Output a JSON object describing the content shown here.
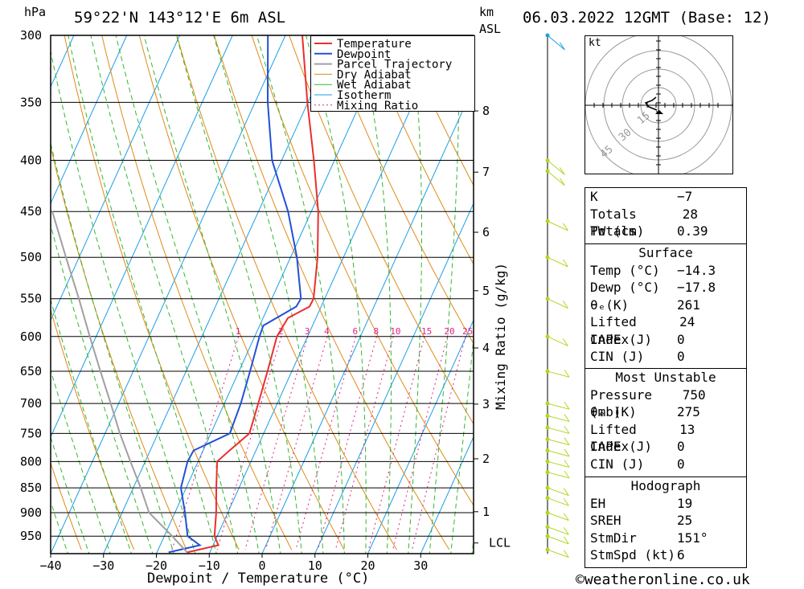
{
  "header": {
    "location": "59°22'N 143°12'E 6m ASL",
    "datetime": "06.03.2022 12GMT (Base: 12)",
    "hpa_label": "hPa",
    "km_label": "km",
    "asl_label": "ASL"
  },
  "legend": [
    "Temperature",
    "Dewpoint",
    "Parcel Trajectory",
    "Dry Adiabat",
    "Wet Adiabat",
    "Isotherm",
    "Mixing Ratio"
  ],
  "colors": {
    "temperature": "#e8302e",
    "dewpoint": "#2250d8",
    "parcel": "#a0a0a0",
    "dry_adiabat": "#e08a18",
    "wet_adiabat": "#30b830",
    "isotherm": "#1a9ee6",
    "mixing_ratio": "#e0208a",
    "wind_barbs": "#b0d820"
  },
  "chart_data": {
    "type": "line",
    "title": "59°22'N 143°12'E 6m ASL",
    "xlabel": "Dewpoint / Temperature (°C)",
    "ylabel": "hPa",
    "ylabel_right": "Mixing Ratio (g/kg)",
    "x_ticks": [
      -40,
      -30,
      -20,
      -10,
      0,
      10,
      20,
      30
    ],
    "x_tick_labels": [
      "−40",
      "−30",
      "−20",
      "−10",
      "0",
      "10",
      "20",
      "30"
    ],
    "pressure_levels": [
      300,
      350,
      400,
      450,
      500,
      550,
      600,
      650,
      700,
      750,
      800,
      850,
      900,
      950
    ],
    "km_ticks": [
      1,
      2,
      3,
      4,
      5,
      6,
      7,
      8
    ],
    "lcl_label": "LCL",
    "mixing_ratio_labels": [
      "1",
      "2",
      "3",
      "4",
      "6",
      "8",
      "10",
      "15",
      "20",
      "25"
    ],
    "series": [
      {
        "name": "Temperature",
        "points": [
          [
            986,
            -14.3
          ],
          [
            970,
            -9
          ],
          [
            950,
            -10.5
          ],
          [
            900,
            -12.2
          ],
          [
            850,
            -14.3
          ],
          [
            800,
            -16.4
          ],
          [
            780,
            -15
          ],
          [
            750,
            -12.7
          ],
          [
            700,
            -13.6
          ],
          [
            650,
            -14.6
          ],
          [
            600,
            -15.8
          ],
          [
            575,
            -15.3
          ],
          [
            560,
            -12.2
          ],
          [
            550,
            -12.1
          ],
          [
            500,
            -14.9
          ],
          [
            450,
            -18.7
          ],
          [
            400,
            -23.9
          ],
          [
            350,
            -30.1
          ],
          [
            300,
            -36.8
          ]
        ]
      },
      {
        "name": "Dewpoint",
        "points": [
          [
            986,
            -17.8
          ],
          [
            970,
            -12.5
          ],
          [
            950,
            -15.6
          ],
          [
            900,
            -18.1
          ],
          [
            850,
            -21.0
          ],
          [
            800,
            -22.0
          ],
          [
            780,
            -21.8
          ],
          [
            750,
            -16.4
          ],
          [
            700,
            -16.9
          ],
          [
            650,
            -17.9
          ],
          [
            600,
            -19.1
          ],
          [
            585,
            -19.3
          ],
          [
            560,
            -14.7
          ],
          [
            550,
            -14.5
          ],
          [
            500,
            -18.8
          ],
          [
            450,
            -24.4
          ],
          [
            400,
            -31.8
          ],
          [
            350,
            -37.6
          ],
          [
            300,
            -43.3
          ]
        ]
      },
      {
        "name": "Parcel Trajectory",
        "points": [
          [
            986,
            -14.3
          ],
          [
            950,
            -18.5
          ],
          [
            900,
            -24.9
          ],
          [
            850,
            -28.6
          ],
          [
            800,
            -32.8
          ],
          [
            750,
            -37.2
          ],
          [
            700,
            -41.5
          ],
          [
            650,
            -46.2
          ],
          [
            600,
            -51.2
          ],
          [
            550,
            -56.5
          ],
          [
            500,
            -62.5
          ],
          [
            450,
            -69.0
          ]
        ]
      }
    ],
    "wind_barb_levels": [
      980,
      950,
      930,
      900,
      870,
      850,
      820,
      800,
      780,
      760,
      740,
      720,
      700,
      650,
      600,
      550,
      500,
      460,
      410,
      400,
      300
    ]
  },
  "hodograph": {
    "unit_label": "kt",
    "ring_labels": [
      "15",
      "30",
      "45"
    ]
  },
  "stats": {
    "k": {
      "label": "K",
      "value": "−7"
    },
    "tt": {
      "label": "Totals Totals",
      "value": "28"
    },
    "pw": {
      "label": "PW (cm)",
      "value": "0.39"
    },
    "surface": {
      "title": "Surface",
      "temp": {
        "label": "Temp (°C)",
        "value": "−14.3"
      },
      "dewp": {
        "label": "Dewp (°C)",
        "value": "−17.8"
      },
      "theta": {
        "label": "θₑ(K)",
        "value": "261"
      },
      "li": {
        "label": "Lifted Index",
        "value": "24"
      },
      "cape": {
        "label": "CAPE (J)",
        "value": "0"
      },
      "cin": {
        "label": "CIN (J)",
        "value": "0"
      }
    },
    "mu": {
      "title": "Most Unstable",
      "pressure": {
        "label": "Pressure (mb)",
        "value": "750"
      },
      "theta": {
        "label": "θₑ (K)",
        "value": "275"
      },
      "li": {
        "label": "Lifted Index",
        "value": "13"
      },
      "cape": {
        "label": "CAPE (J)",
        "value": "0"
      },
      "cin": {
        "label": "CIN (J)",
        "value": "0"
      }
    },
    "hodo": {
      "title": "Hodograph",
      "eh": {
        "label": "EH",
        "value": "19"
      },
      "sreh": {
        "label": "SREH",
        "value": "25"
      },
      "stmdir": {
        "label": "StmDir",
        "value": "151°"
      },
      "stmspd": {
        "label": "StmSpd (kt)",
        "value": "6"
      }
    }
  },
  "footer": {
    "copyright": "©weatheronline.co.uk"
  }
}
